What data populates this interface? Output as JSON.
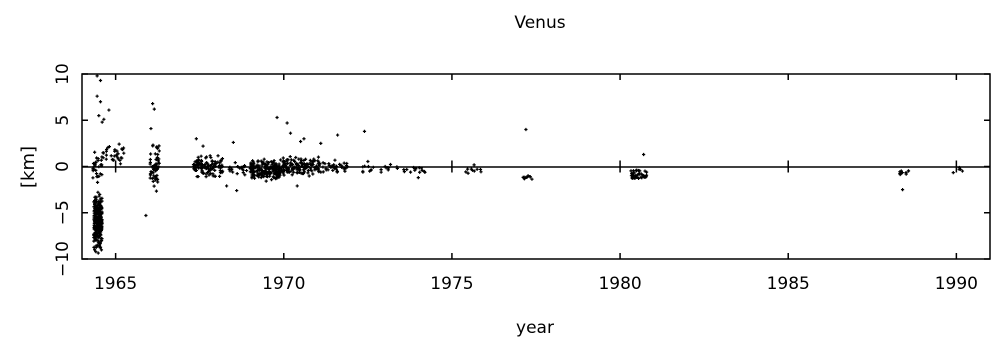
{
  "chart_data": {
    "type": "scatter",
    "title": "Venus",
    "xlabel": "year",
    "ylabel": "[km]",
    "xlim": [
      1964,
      1991
    ],
    "ylim": [
      -10,
      10
    ],
    "xticks": [
      1965,
      1970,
      1975,
      1980,
      1985,
      1990
    ],
    "yticks": [
      -10,
      -5,
      0,
      5,
      10
    ],
    "xtick_labels": [
      "1965",
      "1970",
      "1975",
      "1980",
      "1985",
      "1990"
    ],
    "ytick_labels": [
      "−10",
      "−5",
      "0",
      "5",
      "10"
    ],
    "zero_line": true,
    "grid": false,
    "legend": "none",
    "marker": "+",
    "marker_color": "#000000",
    "clusters": [
      {
        "x": [
          1964.35,
          1964.6
        ],
        "y": [
          -10,
          -2
        ],
        "n": 260
      },
      {
        "x": [
          1964.3,
          1964.6
        ],
        "y": [
          -2,
          2
        ],
        "n": 30
      },
      {
        "x": [
          1964.6,
          1965.3
        ],
        "y": [
          0,
          3
        ],
        "n": 30
      },
      {
        "x": [
          1966.0,
          1966.3
        ],
        "y": [
          -3.5,
          3.5
        ],
        "n": 55
      },
      {
        "x": [
          1967.3,
          1968.2
        ],
        "y": [
          -1.5,
          1.5
        ],
        "n": 110
      },
      {
        "x": [
          1968.3,
          1968.9
        ],
        "y": [
          -1.2,
          1.0
        ],
        "n": 22
      },
      {
        "x": [
          1969.0,
          1969.9
        ],
        "y": [
          -2.0,
          1.0
        ],
        "n": 190
      },
      {
        "x": [
          1969.9,
          1971.1
        ],
        "y": [
          -1.5,
          1.5
        ],
        "n": 140
      },
      {
        "x": [
          1971.1,
          1971.9
        ],
        "y": [
          -1.0,
          0.8
        ],
        "n": 35
      },
      {
        "x": [
          1972.3,
          1973.2
        ],
        "y": [
          -1.2,
          0.8
        ],
        "n": 18
      },
      {
        "x": [
          1973.3,
          1974.2
        ],
        "y": [
          -1.2,
          0.5
        ],
        "n": 16
      },
      {
        "x": [
          1975.4,
          1975.9
        ],
        "y": [
          -1.3,
          0.3
        ],
        "n": 10
      },
      {
        "x": [
          1977.1,
          1977.4
        ],
        "y": [
          -1.6,
          -0.7
        ],
        "n": 10
      },
      {
        "x": [
          1980.3,
          1980.8
        ],
        "y": [
          -1.7,
          0.0
        ],
        "n": 40
      },
      {
        "x": [
          1988.3,
          1988.6
        ],
        "y": [
          -1.0,
          -0.2
        ],
        "n": 10
      },
      {
        "x": [
          1989.9,
          1990.2
        ],
        "y": [
          -0.8,
          0.0
        ],
        "n": 5
      }
    ],
    "points": [
      {
        "x": 1964.45,
        "y": 9.8
      },
      {
        "x": 1964.55,
        "y": 9.3
      },
      {
        "x": 1964.45,
        "y": 7.6
      },
      {
        "x": 1964.55,
        "y": 7.0
      },
      {
        "x": 1964.8,
        "y": 6.1
      },
      {
        "x": 1964.5,
        "y": 5.5
      },
      {
        "x": 1964.65,
        "y": 5.1
      },
      {
        "x": 1964.6,
        "y": 4.8
      },
      {
        "x": 1966.1,
        "y": 6.8
      },
      {
        "x": 1966.15,
        "y": 6.2
      },
      {
        "x": 1966.05,
        "y": 4.1
      },
      {
        "x": 1965.9,
        "y": -5.3
      },
      {
        "x": 1967.4,
        "y": 3.0
      },
      {
        "x": 1967.6,
        "y": 2.2
      },
      {
        "x": 1968.5,
        "y": 2.6
      },
      {
        "x": 1968.3,
        "y": -2.1
      },
      {
        "x": 1968.6,
        "y": -2.6
      },
      {
        "x": 1969.8,
        "y": 5.3
      },
      {
        "x": 1970.1,
        "y": 4.7
      },
      {
        "x": 1970.2,
        "y": 3.6
      },
      {
        "x": 1970.6,
        "y": 3.0
      },
      {
        "x": 1970.5,
        "y": 2.7
      },
      {
        "x": 1970.4,
        "y": -2.1
      },
      {
        "x": 1971.1,
        "y": 2.5
      },
      {
        "x": 1971.6,
        "y": 3.4
      },
      {
        "x": 1972.4,
        "y": 3.8
      },
      {
        "x": 1974.0,
        "y": -1.2
      },
      {
        "x": 1977.2,
        "y": 4.0
      },
      {
        "x": 1980.7,
        "y": 1.3
      },
      {
        "x": 1988.4,
        "y": -2.5
      }
    ]
  }
}
